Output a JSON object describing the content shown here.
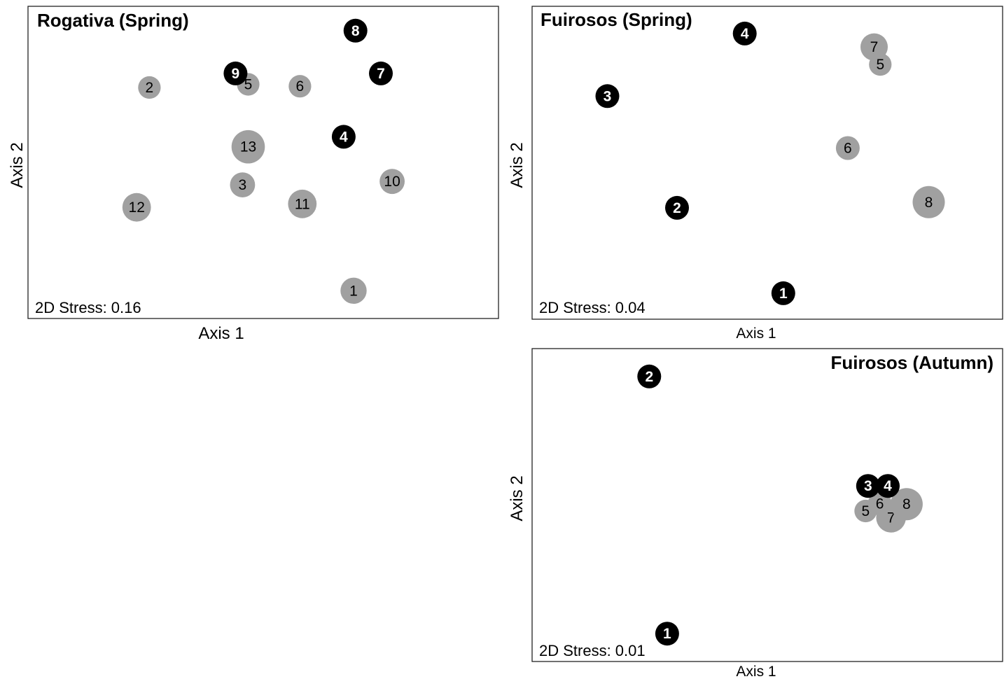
{
  "colors": {
    "group_black": "#000000",
    "group_grey": "#a0a0a0",
    "label_on_black": "#ffffff",
    "label_on_grey": "#000000",
    "frame": "#222222"
  },
  "chart_data": [
    {
      "type": "scatter",
      "title": "Rogativa (Spring)",
      "title_position": "top-left",
      "annotation": "2D Stress: 0.16",
      "xlabel": "Axis 1",
      "ylabel": "Axis 2",
      "xlim": [
        0,
        100
      ],
      "ylim": [
        0,
        100
      ],
      "grid": false,
      "points": [
        {
          "label": "8",
          "x": 69.6,
          "y": 92.2,
          "group": "black",
          "size": 1.0
        },
        {
          "label": "7",
          "x": 75.0,
          "y": 78.5,
          "group": "black",
          "size": 1.0
        },
        {
          "label": "9",
          "x": 44.1,
          "y": 78.5,
          "group": "black",
          "size": 1.0
        },
        {
          "label": "4",
          "x": 67.1,
          "y": 58.2,
          "group": "black",
          "size": 1.0
        },
        {
          "label": "2",
          "x": 25.8,
          "y": 74.0,
          "group": "grey",
          "size": 0.95
        },
        {
          "label": "5",
          "x": 46.8,
          "y": 75.0,
          "group": "grey",
          "size": 0.95
        },
        {
          "label": "6",
          "x": 57.8,
          "y": 74.4,
          "group": "grey",
          "size": 0.95
        },
        {
          "label": "13",
          "x": 46.8,
          "y": 55.0,
          "group": "grey",
          "size": 1.4
        },
        {
          "label": "3",
          "x": 45.6,
          "y": 42.8,
          "group": "grey",
          "size": 1.05
        },
        {
          "label": "10",
          "x": 77.4,
          "y": 43.9,
          "group": "grey",
          "size": 1.05
        },
        {
          "label": "12",
          "x": 23.1,
          "y": 35.6,
          "group": "grey",
          "size": 1.2
        },
        {
          "label": "11",
          "x": 58.3,
          "y": 36.7,
          "group": "grey",
          "size": 1.2
        },
        {
          "label": "1",
          "x": 69.2,
          "y": 8.9,
          "group": "grey",
          "size": 1.1
        }
      ]
    },
    {
      "type": "scatter",
      "title": "Fuirosos (Spring)",
      "title_position": "top-left",
      "annotation": "2D Stress: 0.04",
      "xlabel": "Axis 1",
      "ylabel": "Axis 2",
      "xlim": [
        0,
        100
      ],
      "ylim": [
        0,
        100
      ],
      "grid": false,
      "points": [
        {
          "label": "4",
          "x": 45.2,
          "y": 91.3,
          "group": "black",
          "size": 1.0
        },
        {
          "label": "3",
          "x": 16.0,
          "y": 71.3,
          "group": "black",
          "size": 1.0
        },
        {
          "label": "2",
          "x": 30.8,
          "y": 35.6,
          "group": "black",
          "size": 1.0
        },
        {
          "label": "1",
          "x": 53.4,
          "y": 8.3,
          "group": "black",
          "size": 1.0
        },
        {
          "label": "7",
          "x": 72.7,
          "y": 87.0,
          "group": "grey",
          "size": 1.15
        },
        {
          "label": "5",
          "x": 74.0,
          "y": 81.4,
          "group": "grey",
          "size": 0.95
        },
        {
          "label": "6",
          "x": 67.1,
          "y": 54.7,
          "group": "grey",
          "size": 1.0
        },
        {
          "label": "8",
          "x": 84.3,
          "y": 37.4,
          "group": "grey",
          "size": 1.35
        }
      ]
    },
    {
      "type": "scatter",
      "title": "Fuirosos (Autumn)",
      "title_position": "top-right",
      "annotation": "2D Stress: 0.01",
      "xlabel": "Axis 1",
      "ylabel": "Axis 2",
      "xlim": [
        0,
        100
      ],
      "ylim": [
        0,
        100
      ],
      "grid": false,
      "points": [
        {
          "label": "2",
          "x": 24.9,
          "y": 91.1,
          "group": "black",
          "size": 1.0
        },
        {
          "label": "1",
          "x": 28.7,
          "y": 8.9,
          "group": "black",
          "size": 1.0
        },
        {
          "label": "7",
          "x": 76.3,
          "y": 46.0,
          "group": "grey",
          "size": 1.25
        },
        {
          "label": "8",
          "x": 79.6,
          "y": 50.3,
          "group": "grey",
          "size": 1.35
        },
        {
          "label": "5",
          "x": 70.9,
          "y": 48.1,
          "group": "grey",
          "size": 0.95
        },
        {
          "label": "6",
          "x": 73.9,
          "y": 50.5,
          "group": "grey",
          "size": 1.0
        },
        {
          "label": "3",
          "x": 71.4,
          "y": 56.1,
          "group": "black",
          "size": 1.0
        },
        {
          "label": "4",
          "x": 75.6,
          "y": 56.1,
          "group": "black",
          "size": 1.0
        }
      ]
    }
  ]
}
